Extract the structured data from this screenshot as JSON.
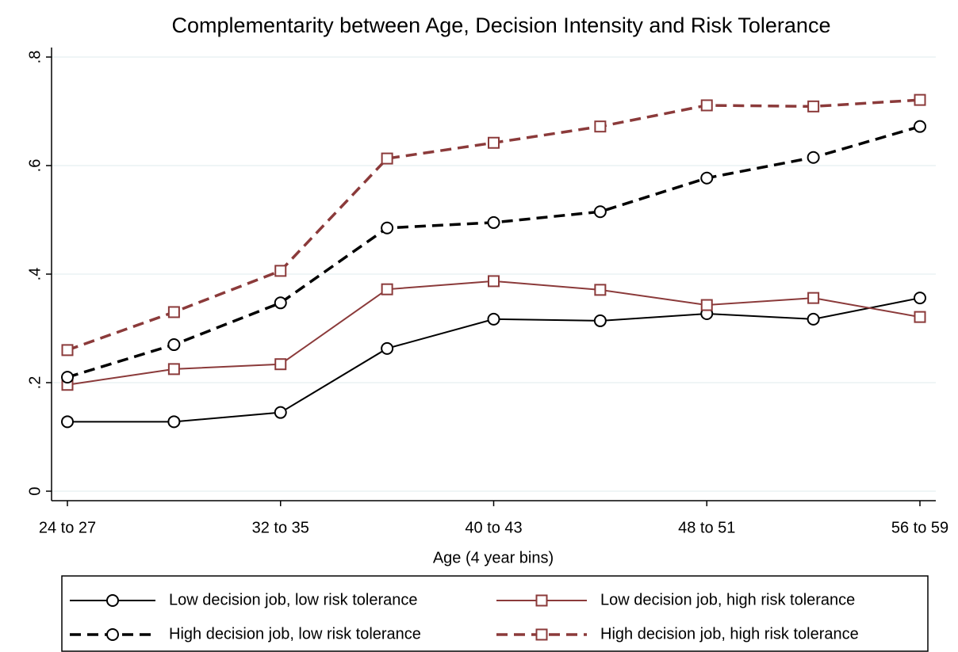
{
  "chart_data": {
    "type": "line",
    "title": "Complementarity between Age, Decision Intensity and Risk Tolerance",
    "x_label": "Age (4 year bins)",
    "categories": [
      "24 to 27",
      null,
      "32 to 35",
      null,
      "40 to 43",
      null,
      "48 to 51",
      null,
      "56 to 59"
    ],
    "series": [
      {
        "name": "Low decision job, low risk tolerance",
        "color": "#000000",
        "line_style": "solid",
        "marker": "circle",
        "values": [
          0.128,
          0.128,
          0.145,
          0.263,
          0.317,
          0.314,
          0.327,
          0.317,
          0.356
        ]
      },
      {
        "name": "Low decision job, high risk tolerance",
        "color": "#8b3a3a",
        "line_style": "solid",
        "marker": "square",
        "values": [
          0.196,
          0.225,
          0.234,
          0.372,
          0.387,
          0.371,
          0.343,
          0.356,
          0.321
        ]
      },
      {
        "name": "High decision job, low risk tolerance",
        "color": "#000000",
        "line_style": "dashed",
        "marker": "circle",
        "values": [
          0.21,
          0.27,
          0.347,
          0.485,
          0.495,
          0.515,
          0.577,
          0.615,
          0.672
        ]
      },
      {
        "name": "High decision job, high risk tolerance",
        "color": "#8b3a3a",
        "line_style": "dashed",
        "marker": "square",
        "values": [
          0.26,
          0.33,
          0.406,
          0.613,
          0.642,
          0.672,
          0.711,
          0.709,
          0.721
        ]
      }
    ],
    "ylim": [
      0,
      0.8
    ],
    "yticks": [
      0,
      {
        "value": 0.2,
        "label": ".2"
      },
      {
        "value": 0.4,
        "label": ".4"
      },
      {
        "value": 0.6,
        "label": ".6"
      },
      {
        "value": 0.8,
        "label": ".8"
      }
    ],
    "grid": true
  }
}
